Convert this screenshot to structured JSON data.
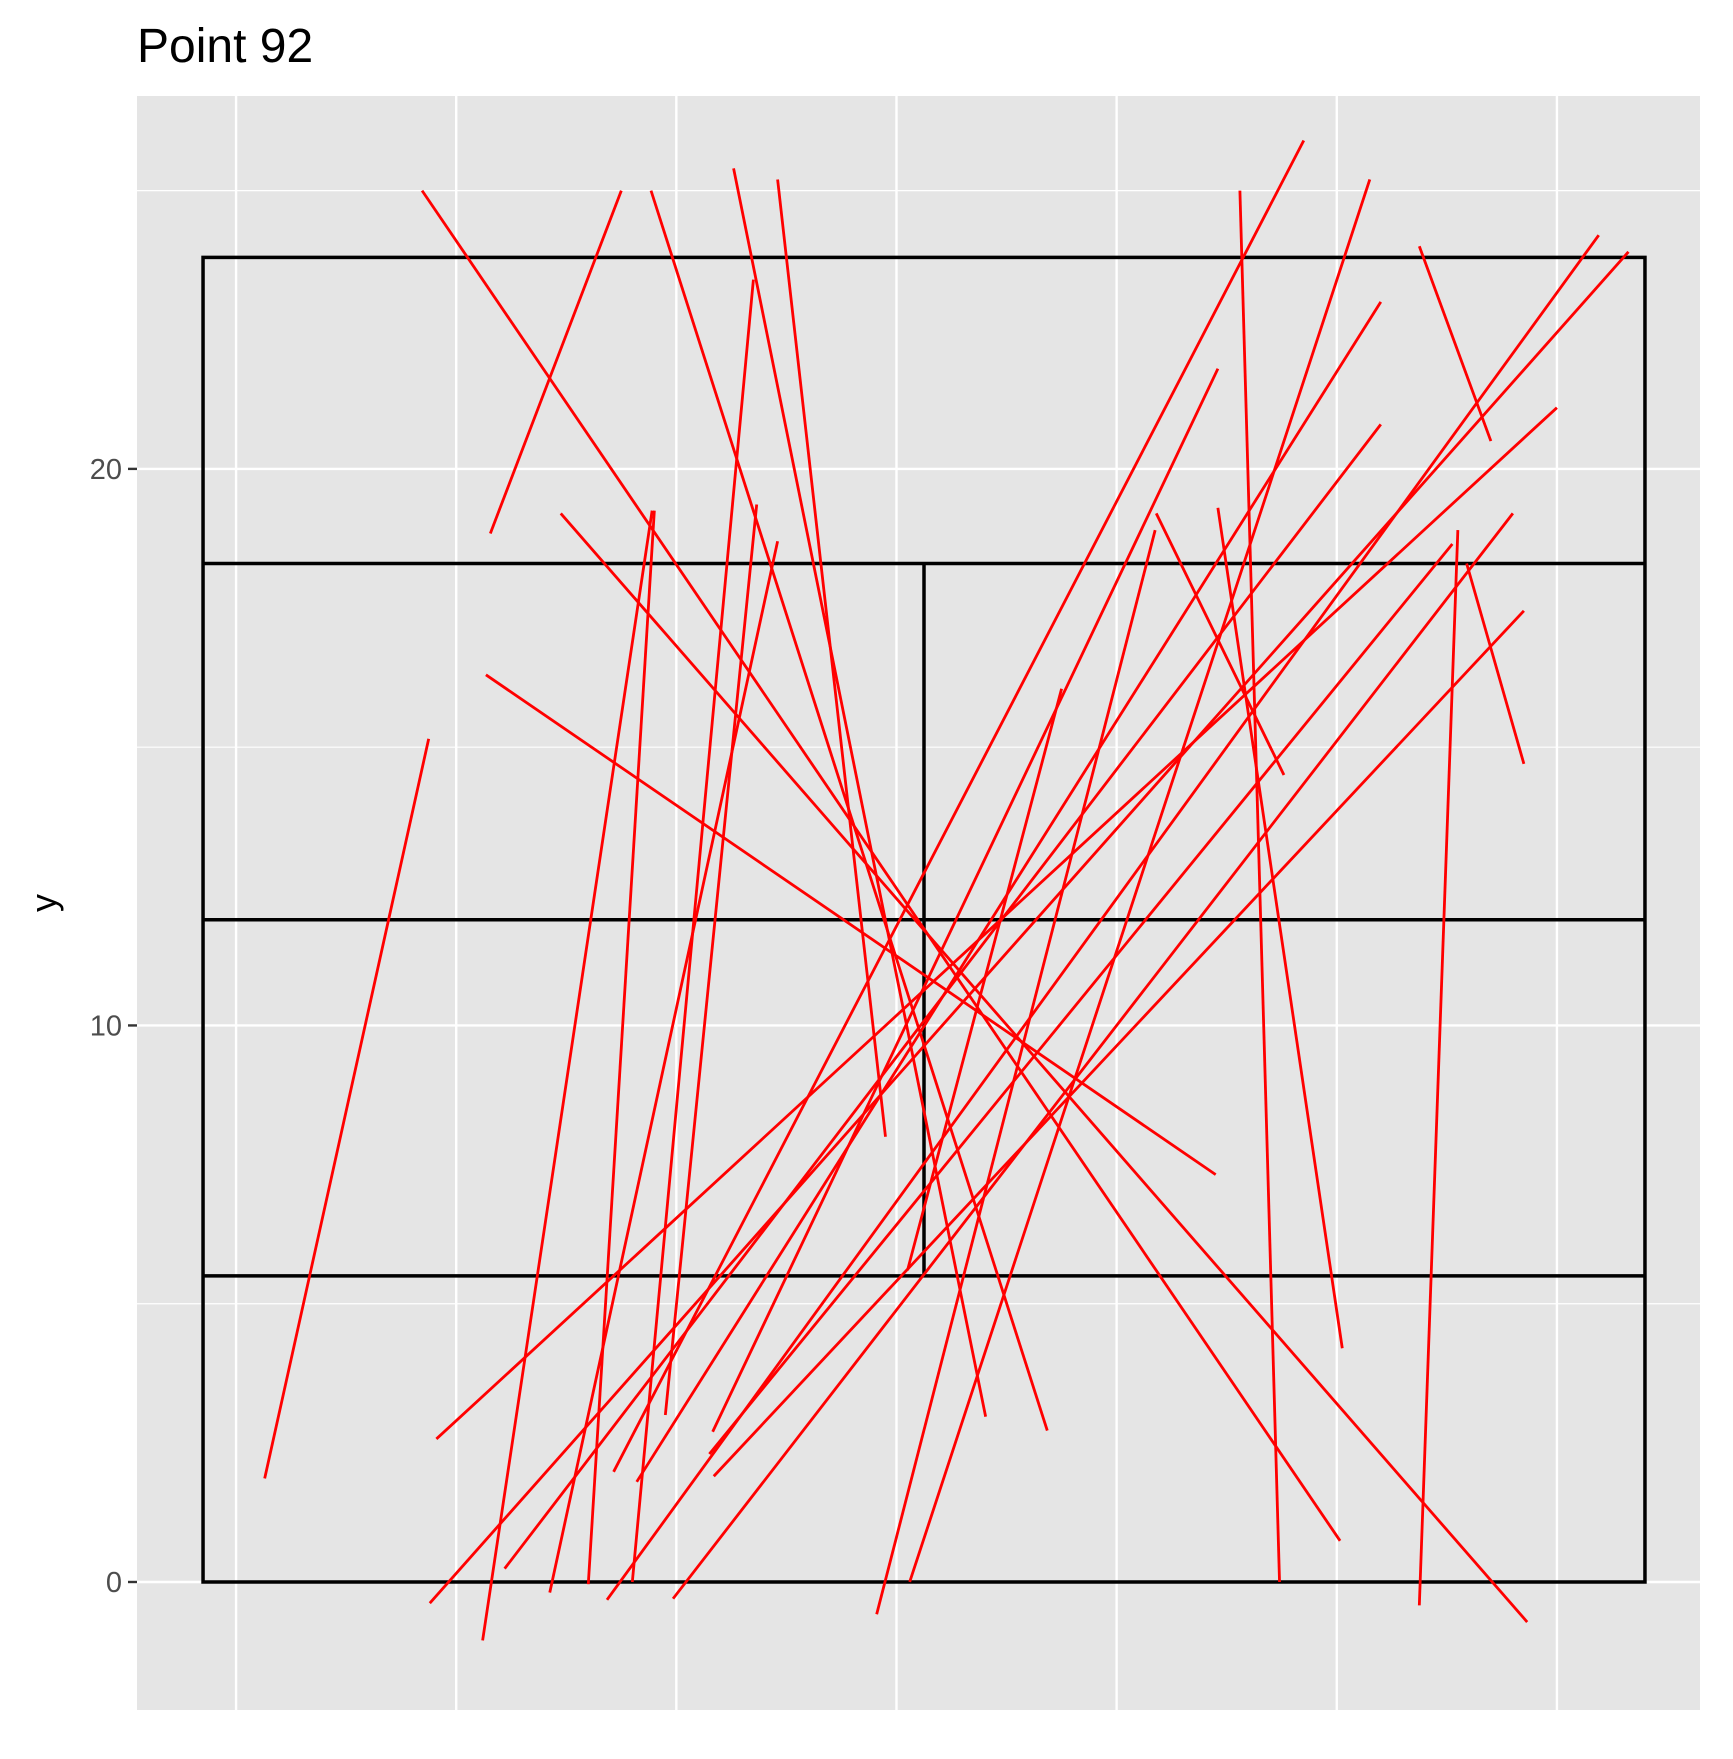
{
  "chart_data": {
    "type": "line",
    "title": "Point 92",
    "xlabel": "",
    "ylabel": "y",
    "xlim": [
      -0.3,
      13.9
    ],
    "ylim": [
      -2.3,
      26.7
    ],
    "x_minor_grid": [
      0.6,
      2.6,
      4.6,
      6.6,
      8.6,
      10.6,
      12.6
    ],
    "y_ticks": [
      0,
      10,
      20
    ],
    "y_minor_grid": [
      5,
      15,
      25
    ],
    "grid": true,
    "background_color": "#e5e5e5",
    "grid_color": "#ffffff",
    "court_color": "#000000",
    "segment_color": "#ff0000",
    "court": {
      "outer": [
        0.3,
        0,
        13.4,
        23.8
      ],
      "hlines": [
        [
          0.3,
          13.4,
          5.5
        ],
        [
          0.3,
          13.4,
          11.9
        ],
        [
          0.3,
          13.4,
          18.3
        ]
      ],
      "vlines": [
        [
          6.85,
          5.5,
          18.3
        ]
      ]
    },
    "segments": [
      [
        0.86,
        1.86,
        2.35,
        15.15
      ],
      [
        2.29,
        25.0,
        10.63,
        0.74
      ],
      [
        2.36,
        -0.38,
        13.25,
        23.9
      ],
      [
        2.42,
        2.57,
        12.6,
        21.1
      ],
      [
        2.84,
        -1.05,
        4.38,
        19.25
      ],
      [
        2.91,
        18.84,
        4.1,
        25.0
      ],
      [
        3.04,
        0.24,
        11.0,
        20.8
      ],
      [
        3.45,
        -0.19,
        5.52,
        18.7
      ],
      [
        3.55,
        19.2,
        12.33,
        -0.72
      ],
      [
        3.8,
        -0.04,
        4.4,
        19.25
      ],
      [
        3.97,
        -0.32,
        12.98,
        24.2
      ],
      [
        4.03,
        1.98,
        10.3,
        25.9
      ],
      [
        4.2,
        0.0,
        5.3,
        23.4
      ],
      [
        4.24,
        1.8,
        11.0,
        23.0
      ],
      [
        4.37,
        25.0,
        7.97,
        2.72
      ],
      [
        4.5,
        3.0,
        5.33,
        19.36
      ],
      [
        4.57,
        -0.3,
        12.2,
        19.2
      ],
      [
        4.9,
        2.3,
        11.65,
        18.65
      ],
      [
        4.93,
        2.7,
        9.52,
        21.8
      ],
      [
        4.94,
        1.9,
        12.3,
        17.45
      ],
      [
        5.12,
        25.4,
        7.41,
        2.97
      ],
      [
        6.42,
        -0.58,
        8.95,
        18.9
      ],
      [
        6.72,
        0.0,
        10.9,
        25.2
      ],
      [
        2.87,
        16.3,
        9.5,
        7.32
      ],
      [
        6.5,
        8.0,
        5.52,
        25.2
      ],
      [
        8.1,
        16.05,
        6.7,
        5.6
      ],
      [
        8.96,
        19.2,
        10.12,
        14.5
      ],
      [
        9.52,
        19.3,
        10.65,
        4.2
      ],
      [
        9.72,
        25.0,
        10.08,
        0.0
      ],
      [
        11.7,
        18.9,
        11.35,
        -0.42
      ],
      [
        11.35,
        24.0,
        12.0,
        20.5
      ],
      [
        11.78,
        18.3,
        12.3,
        14.7
      ]
    ]
  }
}
